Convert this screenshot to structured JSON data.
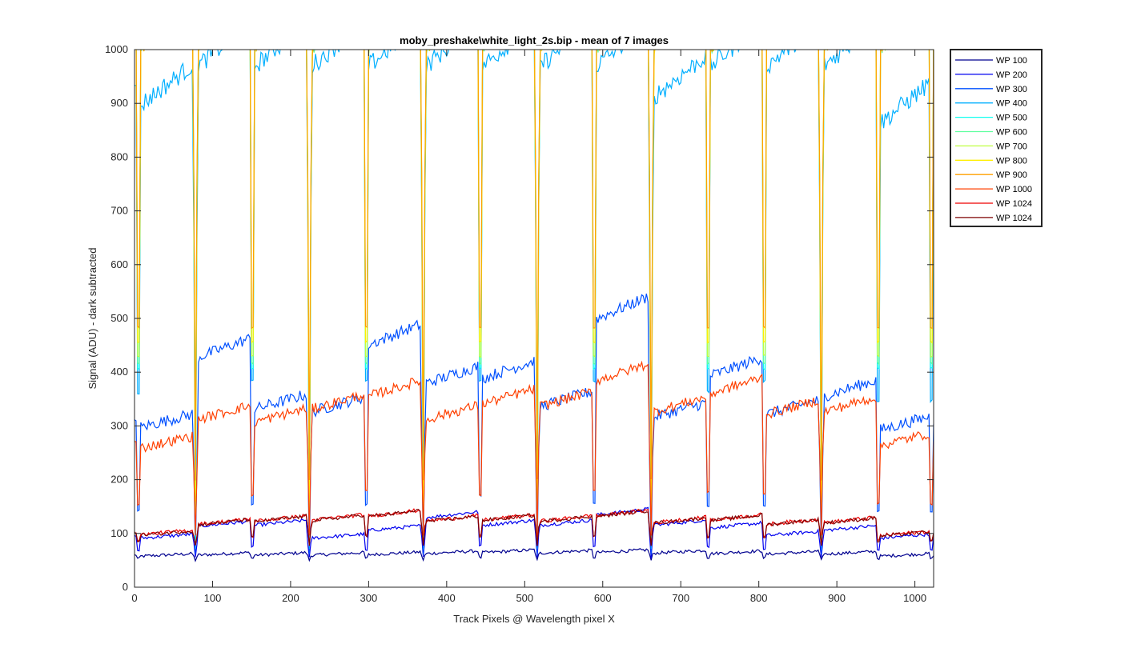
{
  "chart_data": {
    "type": "line",
    "title": "moby_preshake\\white_light_2s.bip - mean of 7 images",
    "xlabel": "Track Pixels @ Wavelength pixel X",
    "ylabel": "Signal (ADU) - dark subtracted",
    "xlim": [
      0,
      1024
    ],
    "ylim": [
      0,
      1000
    ],
    "xticks": [
      0,
      100,
      200,
      300,
      400,
      500,
      600,
      700,
      800,
      900,
      1000
    ],
    "yticks": [
      0,
      100,
      200,
      300,
      400,
      500,
      600,
      700,
      800,
      900,
      1000
    ],
    "grid": false,
    "legend_position": "outside-top-right",
    "fibre_gaps": [
      5,
      78,
      151,
      224,
      297,
      370,
      443,
      516,
      589,
      662,
      735,
      807,
      880,
      953,
      1021
    ],
    "segments_x": [
      [
        8,
        75
      ],
      [
        81,
        148
      ],
      [
        154,
        221
      ],
      [
        227,
        294
      ],
      [
        300,
        367
      ],
      [
        373,
        440
      ],
      [
        446,
        513
      ],
      [
        519,
        586
      ],
      [
        592,
        659
      ],
      [
        665,
        732
      ],
      [
        738,
        804
      ],
      [
        810,
        877
      ],
      [
        883,
        950
      ],
      [
        956,
        1018
      ]
    ],
    "series": [
      {
        "name": "WP 100",
        "color": "#00008f",
        "segment_levels": [
          60,
          62,
          62,
          62,
          63,
          65,
          67,
          66,
          67,
          66,
          65,
          64,
          64,
          60
        ],
        "gap_level": 50
      },
      {
        "name": "WP 200",
        "color": "#0000ef",
        "segment_levels": [
          95,
          118,
          120,
          95,
          110,
          135,
          120,
          120,
          140,
          120,
          115,
          100,
          110,
          95
        ],
        "gap_level": 55
      },
      {
        "name": "WP 300",
        "color": "#0050ff",
        "segment_levels": [
          310,
          445,
          345,
          340,
          470,
          395,
          405,
          350,
          520,
          330,
          410,
          335,
          370,
          305
        ],
        "gap_level": 60
      },
      {
        "name": "WP 400",
        "color": "#00afff",
        "segment_levels": [
          935,
          1010,
          1010,
          1010,
          1010,
          1010,
          1010,
          1010,
          1010,
          950,
          1010,
          1010,
          1010,
          900
        ],
        "gap_level": 70
      },
      {
        "name": "WP 500",
        "color": "#10ffef",
        "segment_levels": [
          1050,
          1050,
          1050,
          1050,
          1050,
          1050,
          1050,
          1050,
          1050,
          1050,
          1050,
          1050,
          1050,
          1050
        ],
        "gap_level": 85
      },
      {
        "name": "WP 600",
        "color": "#60ff9f",
        "segment_levels": [
          1050,
          1050,
          1050,
          1050,
          1050,
          1050,
          1050,
          1050,
          1050,
          1050,
          1050,
          1050,
          1050,
          1050
        ],
        "gap_level": 100
      },
      {
        "name": "WP 700",
        "color": "#bfff40",
        "segment_levels": [
          1050,
          1050,
          1050,
          1050,
          1050,
          1050,
          1050,
          1050,
          1050,
          1050,
          1050,
          1050,
          1050,
          1050
        ],
        "gap_level": 120
      },
      {
        "name": "WP 800",
        "color": "#ffef00",
        "segment_levels": [
          1050,
          1050,
          1050,
          1050,
          1050,
          1050,
          1050,
          1050,
          1050,
          1050,
          1050,
          1050,
          1050,
          1050
        ],
        "gap_level": 160
      },
      {
        "name": "WP 900",
        "color": "#ffa000",
        "segment_levels": [
          1050,
          1050,
          1050,
          1050,
          1050,
          1050,
          1050,
          1050,
          1050,
          1050,
          1050,
          1050,
          1050,
          1050
        ],
        "gap_level": 200
      },
      {
        "name": "WP 1000",
        "color": "#ff4000",
        "segment_levels": [
          270,
          325,
          320,
          345,
          370,
          325,
          355,
          350,
          400,
          340,
          375,
          335,
          340,
          275
        ],
        "gap_level": 95
      },
      {
        "name": "WP 1024",
        "color": "#ef0000",
        "segment_levels": [
          102,
          122,
          128,
          130,
          138,
          128,
          130,
          128,
          138,
          125,
          130,
          122,
          125,
          100
        ],
        "gap_level": 80
      },
      {
        "name": "WP 1024",
        "color": "#7f0000",
        "segment_levels": [
          101,
          121,
          127,
          129,
          137,
          127,
          129,
          127,
          137,
          124,
          129,
          121,
          124,
          99
        ],
        "gap_level": 78
      }
    ]
  }
}
